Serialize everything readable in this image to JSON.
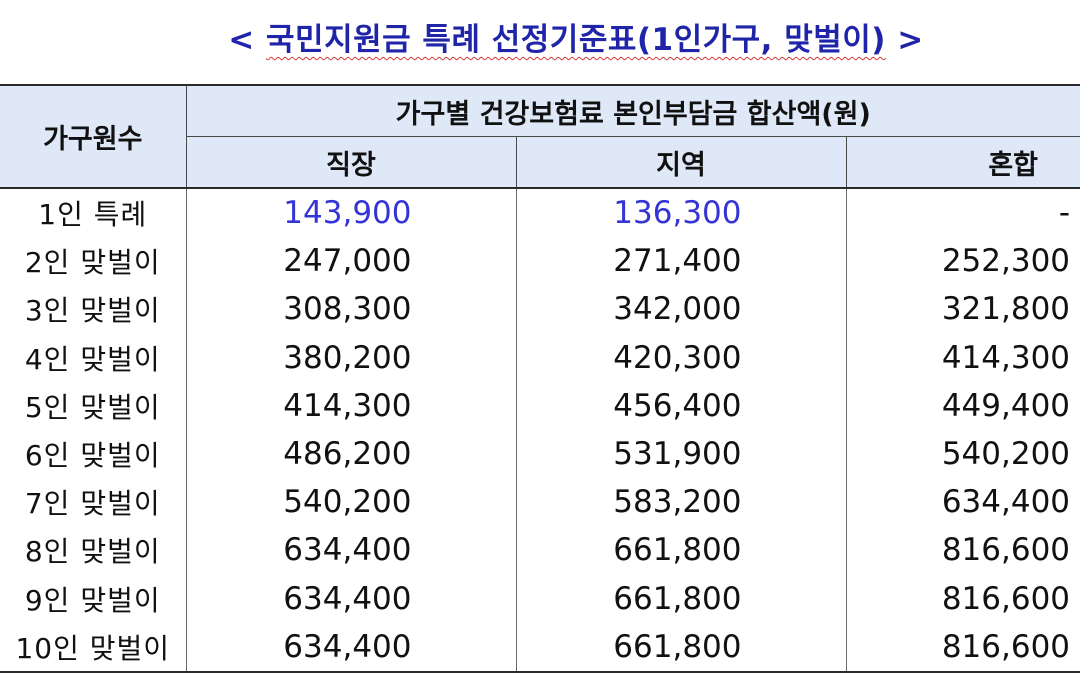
{
  "title": {
    "prefix": "< ",
    "text": "국민지원금 특례 선정기준표(1인가구, 맞벌이)",
    "suffix": " >",
    "color": "#1f24a8"
  },
  "table": {
    "header_bg": "#dfe8f7",
    "highlight_color": "#3535d6",
    "corner_header": "가구원수",
    "group_header": "가구별 건강보험료 본인부담금 합산액(원)",
    "columns": [
      "직장",
      "지역",
      "혼합"
    ],
    "rows": [
      {
        "label": "1인 특례",
        "values": [
          "143,900",
          "136,300",
          "-"
        ],
        "highlight": true
      },
      {
        "label": "2인 맞벌이",
        "values": [
          "247,000",
          "271,400",
          "252,300"
        ],
        "highlight": false
      },
      {
        "label": "3인 맞벌이",
        "values": [
          "308,300",
          "342,000",
          "321,800"
        ],
        "highlight": false
      },
      {
        "label": "4인 맞벌이",
        "values": [
          "380,200",
          "420,300",
          "414,300"
        ],
        "highlight": false
      },
      {
        "label": "5인 맞벌이",
        "values": [
          "414,300",
          "456,400",
          "449,400"
        ],
        "highlight": false
      },
      {
        "label": "6인 맞벌이",
        "values": [
          "486,200",
          "531,900",
          "540,200"
        ],
        "highlight": false
      },
      {
        "label": "7인 맞벌이",
        "values": [
          "540,200",
          "583,200",
          "634,400"
        ],
        "highlight": false
      },
      {
        "label": "8인 맞벌이",
        "values": [
          "634,400",
          "661,800",
          "816,600"
        ],
        "highlight": false
      },
      {
        "label": "9인 맞벌이",
        "values": [
          "634,400",
          "661,800",
          "816,600"
        ],
        "highlight": false
      },
      {
        "label": "10인 맞벌이",
        "values": [
          "634,400",
          "661,800",
          "816,600"
        ],
        "highlight": false
      }
    ]
  }
}
